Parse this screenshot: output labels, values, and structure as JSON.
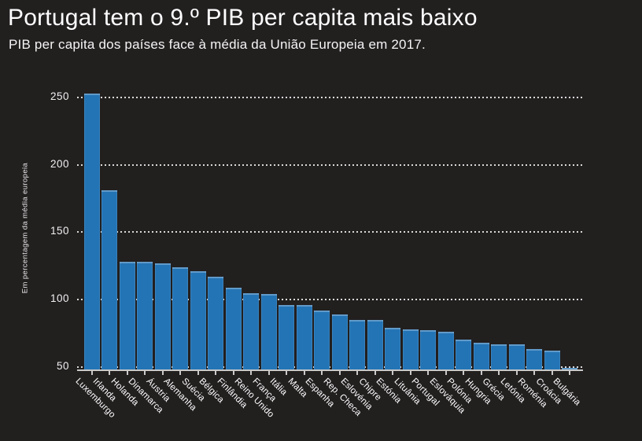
{
  "chart_data": {
    "type": "bar",
    "title": "Portugal tem o 9.º PIB per capita mais baixo",
    "subtitle": "PIB per capita dos países face à média da União Europeia em 2017.",
    "ylabel": "Em percentagem da média europeia",
    "xlabel": "",
    "categories": [
      "Luxemburgo",
      "Irlanda",
      "Holanda",
      "Dinamarca",
      "Áustria",
      "Alemanha",
      "Suécia",
      "Bélgica",
      "Finlândia",
      "Reino Unido",
      "França",
      "Itália",
      "Malta",
      "Espanha",
      "Rep. Checa",
      "Eslovénia",
      "Chipre",
      "Estónia",
      "Lituânia",
      "Portugal",
      "Eslováquia",
      "Polónia",
      "Hungria",
      "Grécia",
      "Letónia",
      "Roménia",
      "Croácia",
      "Bulgária"
    ],
    "values": [
      253,
      181,
      128,
      128,
      127,
      124,
      121,
      117,
      109,
      105,
      104,
      96,
      96,
      92,
      89,
      85,
      85,
      79,
      78,
      77,
      76,
      70,
      68,
      67,
      67,
      63,
      62,
      49
    ],
    "yticks": [
      50,
      100,
      150,
      200,
      250
    ],
    "ylim": [
      47.5,
      260
    ],
    "grid": "horizontal-dotted",
    "legend": "none",
    "colors": {
      "background": "#221f1f",
      "bar": "#2374b5",
      "grid": "#d9d9d9",
      "axis": "#c9c9c9",
      "text": "#ffffff"
    }
  }
}
